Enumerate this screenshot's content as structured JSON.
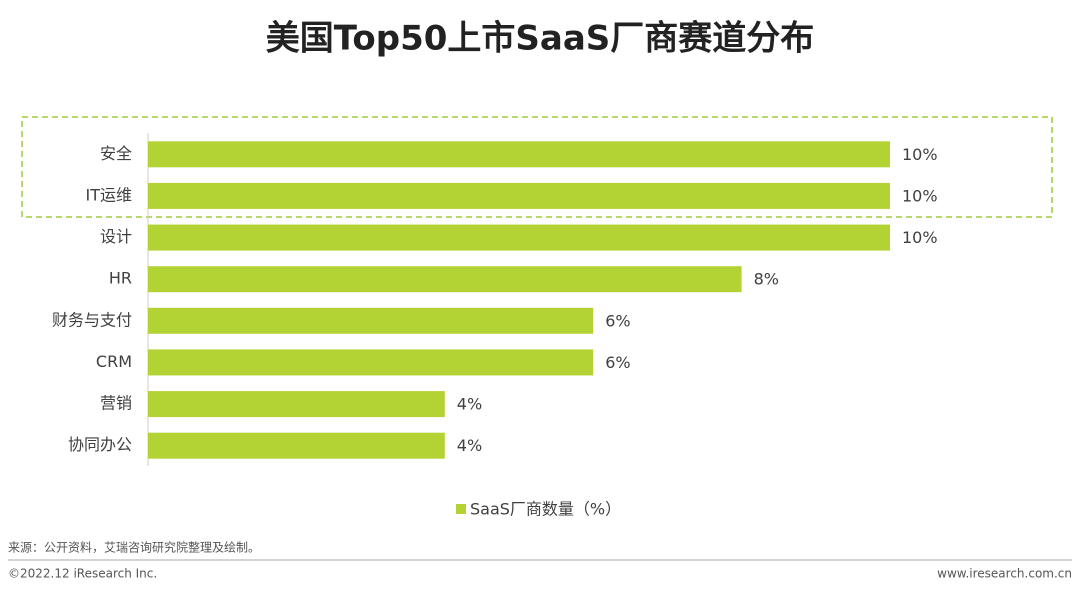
{
  "chart_data": {
    "type": "bar",
    "orientation": "horizontal",
    "title": "美国Top50上市SaaS厂商赛道分布",
    "categories": [
      "安全",
      "IT运维",
      "设计",
      "HR",
      "财务与支付",
      "CRM",
      "营销",
      "协同办公"
    ],
    "series": [
      {
        "name": "SaaS厂商数量（%）",
        "color": "#b3d335",
        "values": [
          10,
          10,
          10,
          8,
          6,
          6,
          4,
          4
        ],
        "value_labels": [
          "10%",
          "10%",
          "10%",
          "8%",
          "6%",
          "6%",
          "4%",
          "4%"
        ]
      }
    ],
    "source": "来源：公开资料，艾瑞咨询研究院整理及绘制。",
    "copyright": "©2022.12 iResearch Inc.",
    "website": "www.iresearch.com.cn"
  }
}
